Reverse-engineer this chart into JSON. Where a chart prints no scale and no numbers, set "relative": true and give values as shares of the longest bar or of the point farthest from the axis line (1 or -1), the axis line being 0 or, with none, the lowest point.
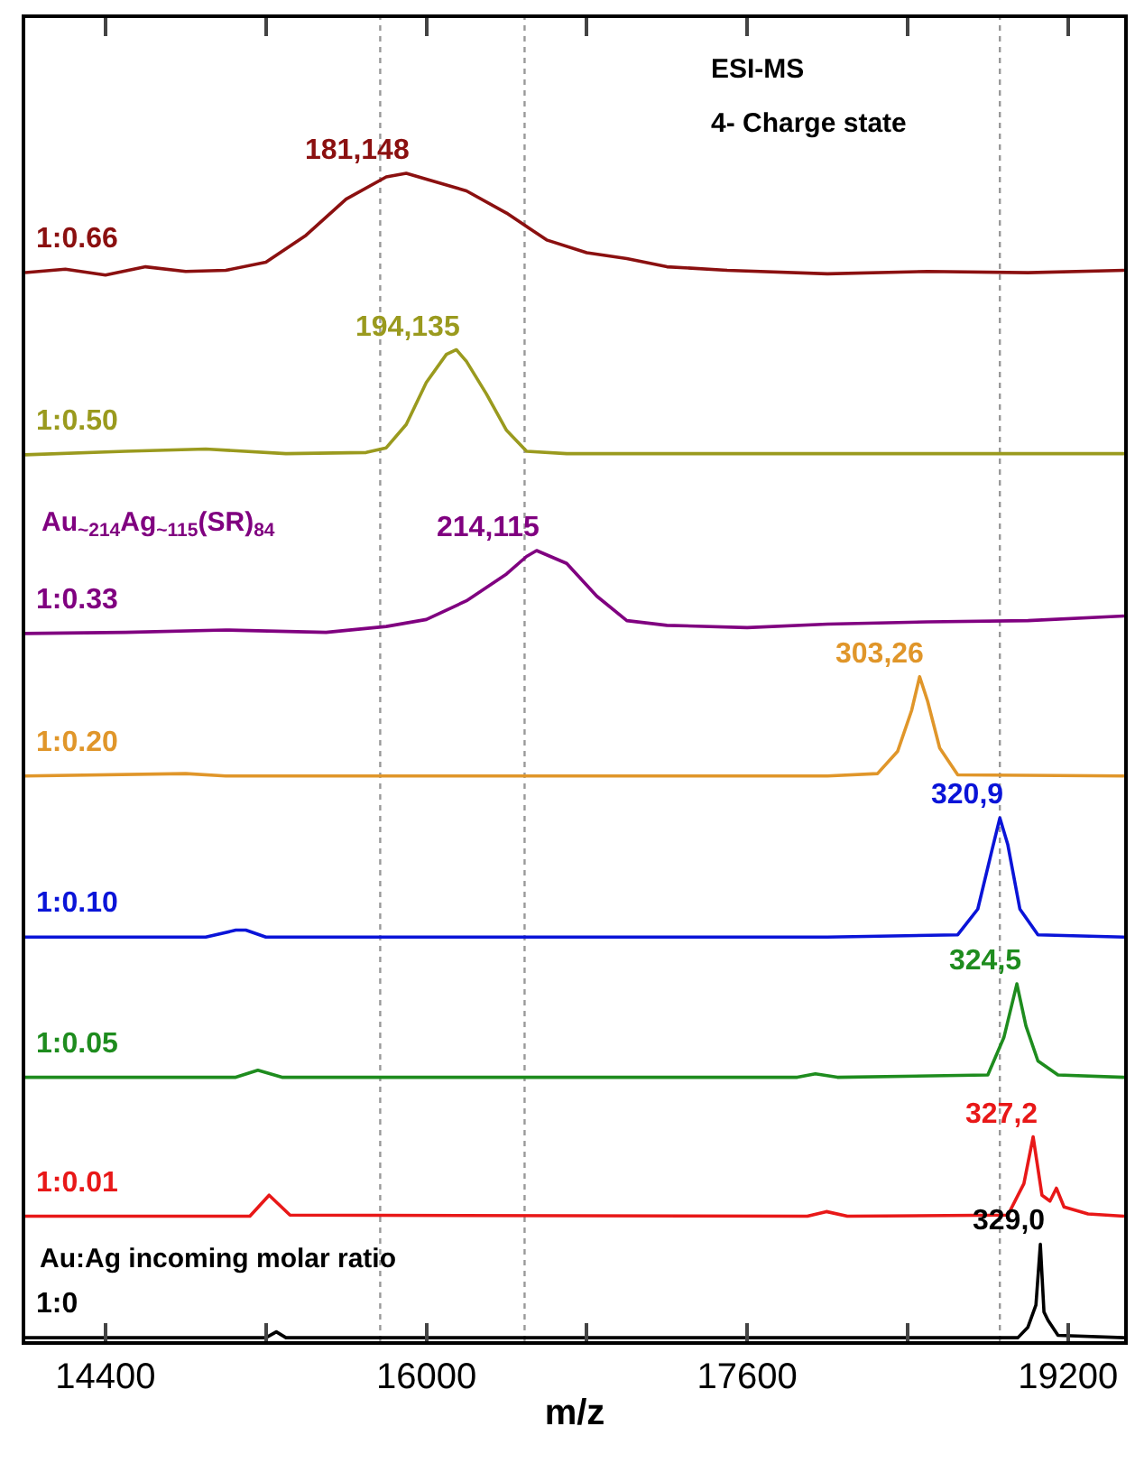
{
  "chart_data": {
    "type": "line",
    "relative": true,
    "xlabel": "m/z",
    "xlim": [
      14000,
      19480
    ],
    "xticks": [
      14400,
      {
        "value": 15200,
        "label": null
      },
      16000,
      {
        "value": 16800,
        "label": null
      },
      17600,
      {
        "value": 18400,
        "label": null
      },
      19200
    ],
    "legend": false,
    "line_style": "solid",
    "marker": "none",
    "annotations": [
      "ESI-MS",
      "4- Charge state",
      "Au$_{~214}$Ag$_{~115}$(SR)$_{84}$",
      "Au:Ag incoming molar ratio",
      {
        "text": "181,148",
        "x": 15900,
        "y": 1.0
      },
      {
        "text": "194,135",
        "x": 16150,
        "y": 0.849
      },
      {
        "text": "214,115",
        "x": 16550,
        "y": 0.677
      },
      {
        "text": "303,26",
        "x": 18460,
        "y": 0.569
      },
      {
        "text": "320,9",
        "x": 18860,
        "y": 0.448
      },
      {
        "text": "324,5",
        "x": 18945,
        "y": 0.306
      },
      {
        "text": "327,2",
        "x": 19026,
        "y": 0.175
      },
      {
        "text": "329,0",
        "x": 19062,
        "y": 0.083
      }
    ],
    "ref_lines": [
      {
        "axis": "x",
        "value": 15770,
        "color": "#999999",
        "line_style": "dotted"
      },
      {
        "axis": "x",
        "value": 16490,
        "color": "#999999",
        "line_style": "dotted"
      },
      {
        "axis": "x",
        "value": 18860,
        "color": "#999999",
        "line_style": "dotted"
      }
    ],
    "series": [
      {
        "name": "1:0.66",
        "color": "#8b1010",
        "x": [
          14000,
          14200,
          14400,
          14600,
          14800,
          15000,
          15200,
          15400,
          15600,
          15800,
          15900,
          16000,
          16200,
          16400,
          16600,
          16800,
          17000,
          17200,
          17500,
          18000,
          18500,
          19000,
          19480
        ],
        "values": [
          0.915,
          0.918,
          0.913,
          0.92,
          0.916,
          0.917,
          0.924,
          0.947,
          0.978,
          0.997,
          1.0,
          0.995,
          0.985,
          0.966,
          0.943,
          0.932,
          0.927,
          0.92,
          0.917,
          0.914,
          0.916,
          0.915,
          0.917
        ]
      },
      {
        "name": "1:0.50",
        "color": "#9a9a1e",
        "x": [
          14000,
          14500,
          14900,
          15300,
          15700,
          15800,
          15900,
          16000,
          16100,
          16150,
          16200,
          16300,
          16400,
          16500,
          16700,
          17500,
          18500,
          19480
        ],
        "values": [
          0.759,
          0.762,
          0.764,
          0.76,
          0.761,
          0.765,
          0.785,
          0.821,
          0.845,
          0.849,
          0.839,
          0.811,
          0.78,
          0.762,
          0.76,
          0.76,
          0.76,
          0.76
        ]
      },
      {
        "name": "1:0.33",
        "color": "#800080",
        "x": [
          14000,
          14500,
          15000,
          15500,
          15800,
          16000,
          16200,
          16400,
          16500,
          16550,
          16700,
          16850,
          17000,
          17200,
          17600,
          18000,
          18500,
          19000,
          19480
        ],
        "values": [
          0.606,
          0.607,
          0.609,
          0.607,
          0.612,
          0.618,
          0.634,
          0.657,
          0.672,
          0.677,
          0.666,
          0.638,
          0.617,
          0.613,
          0.611,
          0.614,
          0.616,
          0.617,
          0.621
        ]
      },
      {
        "name": "1:0.20",
        "color": "#e0962a",
        "x": [
          14000,
          14800,
          15000,
          16000,
          17000,
          18000,
          18250,
          18350,
          18420,
          18460,
          18500,
          18560,
          18650,
          19480
        ],
        "values": [
          0.484,
          0.486,
          0.484,
          0.484,
          0.484,
          0.484,
          0.486,
          0.505,
          0.54,
          0.569,
          0.548,
          0.508,
          0.485,
          0.484
        ]
      },
      {
        "name": "1:0.10",
        "color": "#0a14d8",
        "x": [
          14000,
          14900,
          15050,
          15100,
          15200,
          16000,
          17000,
          18000,
          18650,
          18750,
          18820,
          18860,
          18900,
          18960,
          19050,
          19480
        ],
        "values": [
          0.346,
          0.346,
          0.352,
          0.352,
          0.346,
          0.346,
          0.346,
          0.346,
          0.348,
          0.37,
          0.42,
          0.448,
          0.425,
          0.37,
          0.348,
          0.346
        ]
      },
      {
        "name": "1:0.05",
        "color": "#1e8c1e",
        "x": [
          14000,
          15050,
          15160,
          15280,
          17850,
          17940,
          18050,
          18800,
          18880,
          18945,
          18990,
          19050,
          19150,
          19480
        ],
        "values": [
          0.226,
          0.226,
          0.232,
          0.226,
          0.226,
          0.229,
          0.226,
          0.228,
          0.26,
          0.306,
          0.27,
          0.24,
          0.228,
          0.226
        ]
      },
      {
        "name": "1:0.01",
        "color": "#e81818",
        "x": [
          14000,
          15120,
          15216,
          15320,
          17900,
          17995,
          18100,
          18900,
          18980,
          19026,
          19070,
          19110,
          19142,
          19180,
          19300,
          19480
        ],
        "values": [
          0.107,
          0.107,
          0.125,
          0.108,
          0.107,
          0.111,
          0.107,
          0.108,
          0.135,
          0.175,
          0.125,
          0.12,
          0.131,
          0.115,
          0.109,
          0.107
        ]
      },
      {
        "name": "1:0",
        "color": "#000000",
        "x": [
          14000,
          15200,
          15252,
          15300,
          18950,
          19000,
          19040,
          19062,
          19080,
          19100,
          19150,
          19480
        ],
        "values": [
          0.003,
          0.003,
          0.008,
          0.003,
          0.003,
          0.012,
          0.031,
          0.083,
          0.025,
          0.018,
          0.005,
          0.003
        ]
      }
    ]
  }
}
